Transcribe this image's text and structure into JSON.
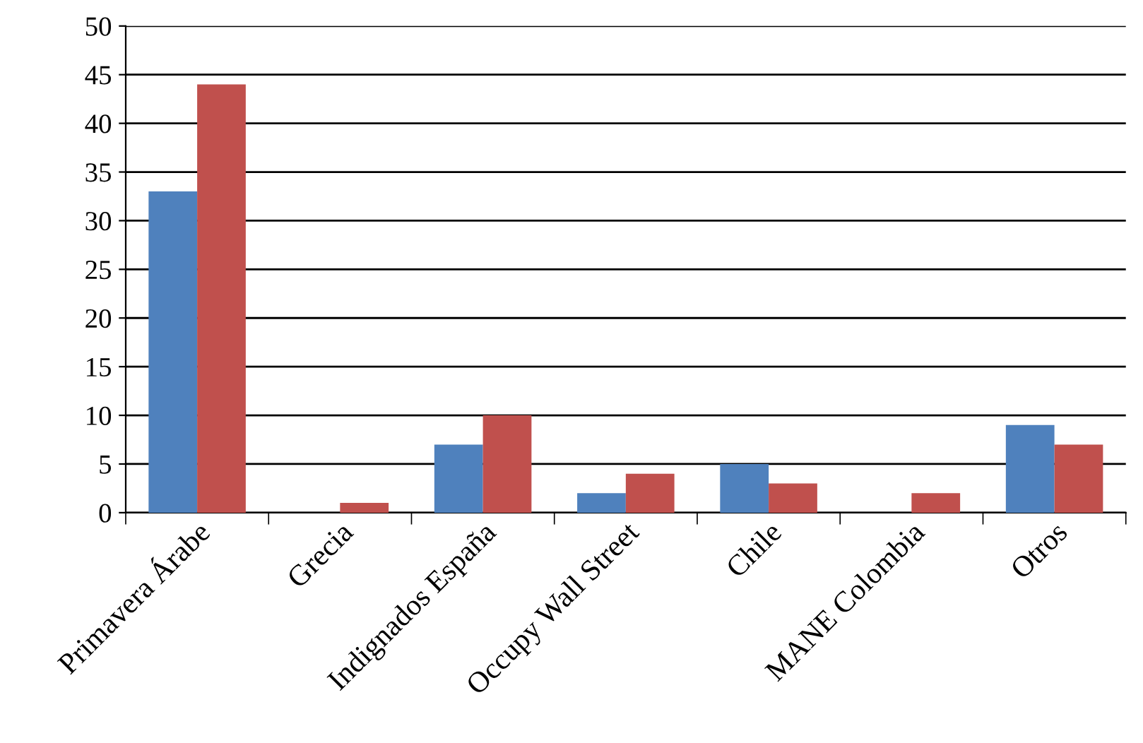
{
  "chart_data": {
    "type": "bar",
    "categories": [
      "Primavera Árabe",
      "Grecia",
      "Indignados España",
      "Occupy Wall Street",
      "Chile",
      "MANE Colombia",
      "Otros"
    ],
    "series": [
      {
        "color": "#4f81bd",
        "values": [
          33,
          0,
          7,
          2,
          5,
          0,
          9
        ]
      },
      {
        "color": "#c0504d",
        "values": [
          44,
          1,
          10,
          4,
          3,
          2,
          7
        ]
      }
    ],
    "ylim": [
      0,
      50
    ],
    "yticks": [
      0,
      5,
      10,
      15,
      20,
      25,
      30,
      35,
      40,
      45,
      50
    ],
    "grid": "y"
  }
}
